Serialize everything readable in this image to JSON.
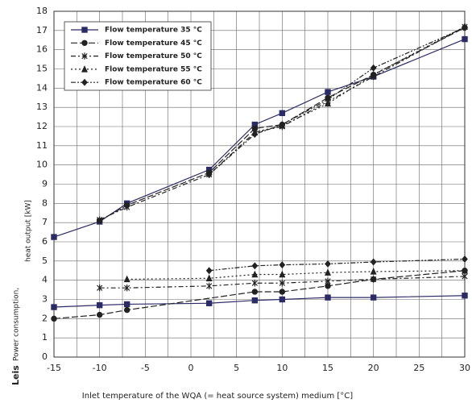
{
  "chart_data": {
    "type": "line",
    "ylabel_prefix": "Leis",
    "ylabel": [
      "Power consumption,",
      "heat output [kW]"
    ],
    "xlabel": "Inlet temperature of the WQA (= heat source system) medium [°C]",
    "xlim": [
      -15,
      30
    ],
    "ylim": [
      0,
      18
    ],
    "xticks": [
      -15,
      -10,
      -5,
      0,
      5,
      10,
      15,
      20,
      25,
      30
    ],
    "xminor_grid": [
      -12.5,
      -7.5,
      -2.5,
      2.5,
      7.5,
      12.5,
      17.5,
      22.5,
      27.5
    ],
    "yticks": [
      0,
      1,
      2,
      3,
      4,
      5,
      6,
      7,
      8,
      9,
      10,
      11,
      12,
      13,
      14,
      15,
      16,
      17,
      18
    ],
    "grid": true,
    "legend": "upper left",
    "series": [
      {
        "name": "Flow temperature 35 °C",
        "color": "#2b2b66",
        "marker": "square",
        "dash": "solid",
        "heat": {
          "x": [
            -15,
            -10,
            -7,
            2,
            7,
            10,
            15,
            20,
            30
          ],
          "values": [
            6.25,
            7.05,
            8.0,
            9.75,
            12.1,
            12.7,
            13.8,
            14.6,
            16.55
          ]
        },
        "power": {
          "x": [
            -15,
            -10,
            -7,
            2,
            7,
            10,
            15,
            20,
            30
          ],
          "values": [
            2.6,
            2.7,
            2.75,
            2.8,
            2.95,
            3.0,
            3.1,
            3.1,
            3.2
          ]
        }
      },
      {
        "name": "Flow temperature 45 °C",
        "color": "#222222",
        "marker": "circle",
        "dash": "8,3",
        "heat": {
          "x": [
            -10,
            -7,
            2,
            7,
            10,
            15,
            20,
            30
          ],
          "values": [
            7.1,
            7.9,
            9.6,
            11.9,
            12.1,
            13.5,
            14.7,
            17.15
          ]
        },
        "power": {
          "x": [
            -15,
            -10,
            -7,
            7,
            10,
            15,
            20,
            30
          ],
          "values": [
            2.0,
            2.2,
            2.45,
            3.4,
            3.4,
            3.7,
            4.05,
            4.5
          ]
        }
      },
      {
        "name": "Flow temperature 50 °C",
        "color": "#222222",
        "marker": "star",
        "dash": "6,3,2,3",
        "heat": {
          "x": [
            -10,
            -7,
            2,
            7,
            10,
            15,
            20,
            30
          ],
          "values": [
            7.15,
            7.8,
            9.5,
            11.7,
            12.0,
            13.3,
            14.6,
            17.2
          ]
        },
        "power": {
          "x": [
            -10,
            -7,
            2,
            7,
            10,
            15,
            20,
            30
          ],
          "values": [
            3.6,
            3.6,
            3.7,
            3.85,
            3.85,
            3.95,
            4.05,
            4.2
          ]
        }
      },
      {
        "name": "Flow temperature 55 °C",
        "color": "#222222",
        "marker": "triangle",
        "dash": "2,3",
        "heat": {
          "x": [
            7,
            10,
            15,
            20,
            30
          ],
          "values": [
            11.7,
            12.05,
            13.2,
            14.7,
            17.2
          ]
        },
        "power": {
          "x": [
            -7,
            2,
            7,
            10,
            15,
            20,
            30
          ],
          "values": [
            4.05,
            4.1,
            4.3,
            4.3,
            4.4,
            4.45,
            4.5
          ]
        }
      },
      {
        "name": "Flow temperature 60 °C",
        "color": "#222222",
        "marker": "diamond",
        "dash": "6,2,2,2,2,2",
        "heat": {
          "x": [
            2,
            7,
            10,
            15,
            20,
            30
          ],
          "values": [
            9.5,
            11.6,
            12.1,
            13.4,
            15.05,
            17.15
          ]
        },
        "power": {
          "x": [
            2,
            7,
            10,
            15,
            20,
            30
          ],
          "values": [
            4.5,
            4.75,
            4.8,
            4.85,
            4.95,
            5.1
          ]
        }
      }
    ]
  }
}
